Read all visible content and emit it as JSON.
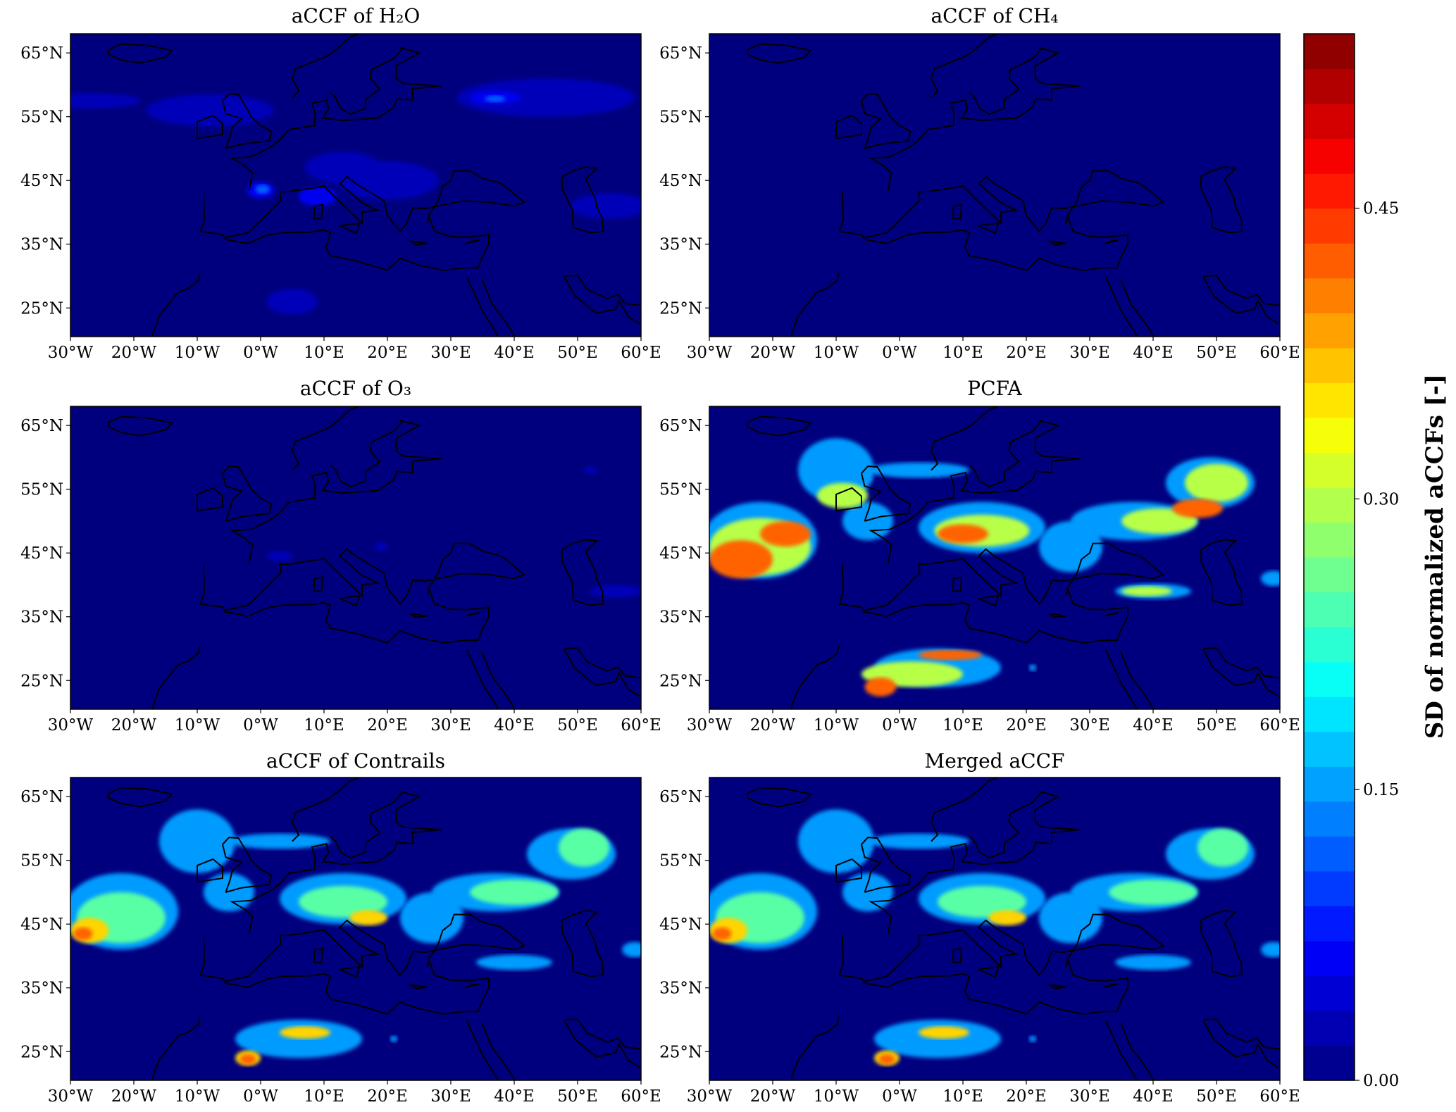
{
  "chart_data": [
    {
      "type": "heatmap",
      "title": "aCCF of H₂O",
      "x_ticks": [
        "30°W",
        "20°W",
        "10°W",
        "0°W",
        "10°E",
        "20°E",
        "30°E",
        "40°E",
        "50°E",
        "60°E"
      ],
      "y_ticks": [
        "65°N",
        "55°N",
        "45°N",
        "35°N",
        "25°N"
      ],
      "xlim": [
        -30,
        60
      ],
      "ylim": [
        20.5,
        68
      ],
      "levels": [
        {
          "value": 0.03,
          "blobs": [
            [
              -27,
              57.5,
              8,
              1.2
            ],
            [
              -8,
              56,
              10,
              2.5
            ],
            [
              13,
              47,
              6,
              2.5
            ],
            [
              20,
              45,
              8,
              3
            ],
            [
              45,
              58,
              14,
              3
            ],
            [
              55,
              41,
              6,
              2
            ],
            [
              5,
              26,
              4,
              2
            ]
          ]
        },
        {
          "value": 0.06,
          "blobs": [
            [
              0,
              43.5,
              2.2,
              1.3
            ],
            [
              37,
              58,
              4,
              1.1
            ],
            [
              9,
              42.5,
              3,
              1.5
            ]
          ]
        },
        {
          "value": 0.12,
          "blobs": [
            [
              0.3,
              43.6,
              1.1,
              0.7
            ],
            [
              37,
              57.8,
              1.6,
              0.5
            ]
          ]
        }
      ]
    },
    {
      "type": "heatmap",
      "title": "aCCF of CH₄",
      "x_ticks": [
        "30°W",
        "20°W",
        "10°W",
        "0°W",
        "10°E",
        "20°E",
        "30°E",
        "40°E",
        "50°E",
        "60°E"
      ],
      "y_ticks": [
        "65°N",
        "55°N",
        "45°N",
        "35°N",
        "25°N"
      ],
      "xlim": [
        -30,
        60
      ],
      "ylim": [
        20.5,
        68
      ],
      "levels": []
    },
    {
      "type": "heatmap",
      "title": "aCCF of O₃",
      "x_ticks": [
        "30°W",
        "20°W",
        "10°W",
        "0°W",
        "10°E",
        "20°E",
        "30°E",
        "40°E",
        "50°E",
        "60°E"
      ],
      "y_ticks": [
        "65°N",
        "55°N",
        "45°N",
        "35°N",
        "25°N"
      ],
      "xlim": [
        -30,
        60
      ],
      "ylim": [
        20.5,
        68
      ],
      "levels": [
        {
          "value": 0.03,
          "blobs": [
            [
              3,
              44.5,
              2,
              0.8
            ],
            [
              19,
              46,
              1,
              0.7
            ],
            [
              56,
              39,
              4,
              1
            ],
            [
              52,
              58,
              1,
              0.6
            ]
          ]
        }
      ]
    },
    {
      "type": "heatmap",
      "title": "PCFA",
      "x_ticks": [
        "30°W",
        "20°W",
        "10°W",
        "0°W",
        "10°E",
        "20°E",
        "30°E",
        "40°E",
        "50°E",
        "60°E"
      ],
      "y_ticks": [
        "65°N",
        "55°N",
        "45°N",
        "35°N",
        "25°N"
      ],
      "xlim": [
        -30,
        60
      ],
      "ylim": [
        20.5,
        68
      ],
      "levels": [
        {
          "value": 0.15,
          "blobs": [
            [
              -22,
              47,
              9,
              6
            ],
            [
              -10,
              58,
              6,
              5
            ],
            [
              -5,
              50,
              4,
              3
            ],
            [
              3,
              58,
              8,
              1.2
            ],
            [
              13,
              49,
              10,
              4
            ],
            [
              27,
              46,
              5,
              4
            ],
            [
              37,
              50,
              10,
              3
            ],
            [
              49,
              56,
              7,
              4
            ],
            [
              40,
              39,
              6,
              1.2
            ],
            [
              6,
              27,
              10,
              3
            ],
            [
              59,
              41,
              2,
              1.2
            ],
            [
              21,
              27,
              0.6,
              0.5
            ]
          ]
        },
        {
          "value": 0.3,
          "blobs": [
            [
              -22,
              46,
              8,
              4.5
            ],
            [
              -9,
              54,
              4,
              2
            ],
            [
              13,
              48.5,
              7.5,
              2.5
            ],
            [
              41,
              50,
              6,
              2
            ],
            [
              50,
              56,
              5,
              3
            ],
            [
              39,
              39,
              4,
              0.8
            ],
            [
              2,
              26,
              8,
              2
            ]
          ]
        },
        {
          "value": 0.42,
          "blobs": [
            [
              -25,
              44,
              5,
              3
            ],
            [
              -18,
              48,
              4,
              2
            ],
            [
              10,
              48,
              4,
              1.5
            ],
            [
              47,
              52,
              4,
              1.5
            ],
            [
              -3,
              24,
              2.5,
              1.5
            ],
            [
              8,
              29,
              5,
              0.8
            ]
          ]
        }
      ]
    },
    {
      "type": "heatmap",
      "title": "aCCF of Contrails",
      "x_ticks": [
        "30°W",
        "20°W",
        "10°W",
        "0°W",
        "10°E",
        "20°E",
        "30°E",
        "40°E",
        "50°E",
        "60°E"
      ],
      "y_ticks": [
        "65°N",
        "55°N",
        "45°N",
        "35°N",
        "25°N"
      ],
      "xlim": [
        -30,
        60
      ],
      "ylim": [
        20.5,
        68
      ],
      "levels": [
        {
          "value": 0.15,
          "blobs": [
            [
              -22,
              47,
              9,
              6
            ],
            [
              -10,
              58,
              6,
              5
            ],
            [
              -5,
              50,
              4,
              3
            ],
            [
              3,
              58,
              8,
              1.2
            ],
            [
              13,
              49,
              10,
              4
            ],
            [
              27,
              46,
              5,
              4
            ],
            [
              37,
              50,
              10,
              3
            ],
            [
              49,
              56,
              7,
              4
            ],
            [
              40,
              39,
              6,
              1.2
            ],
            [
              6,
              27,
              10,
              3
            ],
            [
              59,
              41,
              2,
              1.2
            ],
            [
              21,
              27,
              0.6,
              0.5
            ]
          ]
        },
        {
          "value": 0.25,
          "blobs": [
            [
              -22,
              46,
              7,
              4
            ],
            [
              13,
              48.5,
              7,
              2.5
            ],
            [
              40,
              50,
              7,
              2
            ],
            [
              51,
              57,
              4,
              3
            ]
          ]
        },
        {
          "value": 0.36,
          "blobs": [
            [
              -27,
              44,
              3,
              2
            ],
            [
              17,
              46,
              3,
              1.2
            ],
            [
              7,
              28,
              4,
              1
            ],
            [
              -2,
              24,
              2,
              1.2
            ]
          ]
        },
        {
          "value": 0.42,
          "blobs": [
            [
              -2,
              23.8,
              1.3,
              0.8
            ],
            [
              -28,
              43.5,
              1.5,
              1
            ]
          ]
        }
      ]
    },
    {
      "type": "heatmap",
      "title": "Merged aCCF",
      "x_ticks": [
        "30°W",
        "20°W",
        "10°W",
        "0°W",
        "10°E",
        "20°E",
        "30°E",
        "40°E",
        "50°E",
        "60°E"
      ],
      "y_ticks": [
        "65°N",
        "55°N",
        "45°N",
        "35°N",
        "25°N"
      ],
      "xlim": [
        -30,
        60
      ],
      "ylim": [
        20.5,
        68
      ],
      "levels": [
        {
          "value": 0.15,
          "blobs": [
            [
              -22,
              47,
              9,
              6
            ],
            [
              -10,
              58,
              6,
              5
            ],
            [
              -5,
              50,
              4,
              3
            ],
            [
              3,
              58,
              8,
              1.2
            ],
            [
              13,
              49,
              10,
              4
            ],
            [
              27,
              46,
              5,
              4
            ],
            [
              37,
              50,
              10,
              3
            ],
            [
              49,
              56,
              7,
              4
            ],
            [
              40,
              39,
              6,
              1.2
            ],
            [
              6,
              27,
              10,
              3
            ],
            [
              59,
              41,
              2,
              1.2
            ],
            [
              21,
              27,
              0.6,
              0.5
            ]
          ]
        },
        {
          "value": 0.25,
          "blobs": [
            [
              -22,
              46,
              7,
              4
            ],
            [
              13,
              48.5,
              7,
              2.5
            ],
            [
              40,
              50,
              7,
              2
            ],
            [
              51,
              57,
              4,
              3
            ]
          ]
        },
        {
          "value": 0.36,
          "blobs": [
            [
              -27,
              44,
              3,
              2
            ],
            [
              17,
              46,
              3,
              1.2
            ],
            [
              7,
              28,
              4,
              1
            ],
            [
              -2,
              24,
              2,
              1.2
            ]
          ]
        },
        {
          "value": 0.42,
          "blobs": [
            [
              -2,
              23.8,
              1.3,
              0.8
            ],
            [
              -28,
              43.5,
              1.5,
              1
            ]
          ]
        }
      ]
    }
  ],
  "colorbar": {
    "label": "SD of normalized aCCFs [-]",
    "ticks": [
      {
        "value": 0.0,
        "label": "0.00"
      },
      {
        "value": 0.15,
        "label": "0.15"
      },
      {
        "value": 0.3,
        "label": "0.30"
      },
      {
        "value": 0.45,
        "label": "0.45"
      }
    ],
    "range": [
      0,
      0.54
    ],
    "levels": 30,
    "colormap": "jet",
    "jet_colors": [
      "#00007f",
      "#0000ff",
      "#007fff",
      "#00ffff",
      "#7fff7f",
      "#ffff00",
      "#ff7f00",
      "#ff0000",
      "#7f0000"
    ]
  }
}
